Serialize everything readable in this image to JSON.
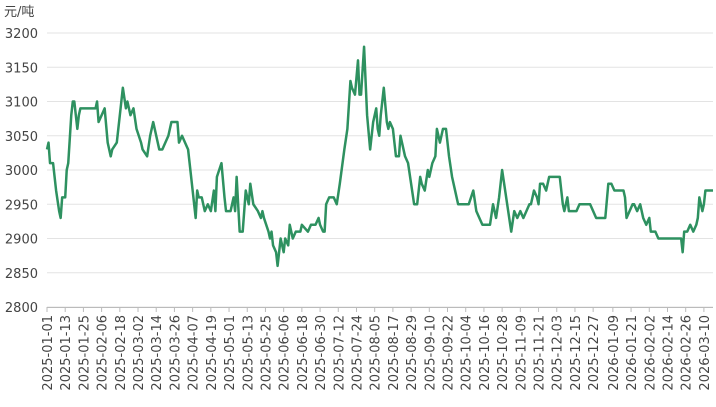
{
  "chart_data": {
    "type": "line",
    "y_label": "元/吨",
    "x": [
      "2025-01-01",
      "2025-01-02",
      "2025-01-03",
      "2025-01-05",
      "2025-01-07",
      "2025-01-09",
      "2025-01-10",
      "2025-01-11",
      "2025-01-13",
      "2025-01-14",
      "2025-01-15",
      "2025-01-17",
      "2025-01-18",
      "2025-01-19",
      "2025-01-20",
      "2025-01-21",
      "2025-01-22",
      "2025-01-23",
      "2025-02-02",
      "2025-02-03",
      "2025-02-04",
      "2025-02-06",
      "2025-02-08",
      "2025-02-10",
      "2025-02-12",
      "2025-02-13",
      "2025-02-16",
      "2025-02-18",
      "2025-02-20",
      "2025-02-22",
      "2025-02-23",
      "2025-02-25",
      "2025-02-27",
      "2025-03-01",
      "2025-03-04",
      "2025-03-05",
      "2025-03-08",
      "2025-03-10",
      "2025-03-12",
      "2025-03-14",
      "2025-03-16",
      "2025-03-18",
      "2025-03-20",
      "2025-03-22",
      "2025-03-24",
      "2025-03-28",
      "2025-03-29",
      "2025-03-31",
      "2025-04-02",
      "2025-04-04",
      "2025-04-05",
      "2025-04-07",
      "2025-04-09",
      "2025-04-10",
      "2025-04-11",
      "2025-04-13",
      "2025-04-15",
      "2025-04-17",
      "2025-04-19",
      "2025-04-21",
      "2025-04-22",
      "2025-04-23",
      "2025-04-26",
      "2025-04-28",
      "2025-04-29",
      "2025-05-02",
      "2025-05-04",
      "2025-05-05",
      "2025-05-06",
      "2025-05-08",
      "2025-05-10",
      "2025-05-12",
      "2025-05-14",
      "2025-05-15",
      "2025-05-17",
      "2025-05-20",
      "2025-05-22",
      "2025-05-23",
      "2025-05-24",
      "2025-05-27",
      "2025-05-28",
      "2025-05-29",
      "2025-05-30",
      "2025-06-01",
      "2025-06-02",
      "2025-06-04",
      "2025-06-06",
      "2025-06-07",
      "2025-06-09",
      "2025-06-10",
      "2025-06-12",
      "2025-06-14",
      "2025-06-17",
      "2025-06-18",
      "2025-06-22",
      "2025-06-24",
      "2025-06-27",
      "2025-06-29",
      "2025-06-30",
      "2025-07-02",
      "2025-07-03",
      "2025-07-04",
      "2025-07-06",
      "2025-07-09",
      "2025-07-11",
      "2025-07-13",
      "2025-07-16",
      "2025-07-18",
      "2025-07-20",
      "2025-07-21",
      "2025-07-23",
      "2025-07-25",
      "2025-07-26",
      "2025-07-27",
      "2025-07-29",
      "2025-07-31",
      "2025-08-02",
      "2025-08-04",
      "2025-08-06",
      "2025-08-07",
      "2025-08-08",
      "2025-08-09",
      "2025-08-11",
      "2025-08-13",
      "2025-08-14",
      "2025-08-15",
      "2025-08-17",
      "2025-08-19",
      "2025-08-21",
      "2025-08-22",
      "2025-08-23",
      "2025-08-25",
      "2025-08-27",
      "2025-08-29",
      "2025-08-31",
      "2025-09-02",
      "2025-09-04",
      "2025-09-05",
      "2025-09-07",
      "2025-09-09",
      "2025-09-10",
      "2025-09-12",
      "2025-09-14",
      "2025-09-15",
      "2025-09-17",
      "2025-09-19",
      "2025-09-21",
      "2025-09-23",
      "2025-09-25",
      "2025-09-27",
      "2025-09-29",
      "2025-10-01",
      "2025-10-06",
      "2025-10-09",
      "2025-10-11",
      "2025-10-13",
      "2025-10-15",
      "2025-10-20",
      "2025-10-22",
      "2025-10-24",
      "2025-10-26",
      "2025-10-28",
      "2025-10-30",
      "2025-11-01",
      "2025-11-03",
      "2025-11-05",
      "2025-11-07",
      "2025-11-09",
      "2025-11-11",
      "2025-11-13",
      "2025-11-15",
      "2025-11-16",
      "2025-11-18",
      "2025-11-20",
      "2025-11-21",
      "2025-11-22",
      "2025-11-24",
      "2025-11-26",
      "2025-11-28",
      "2025-12-05",
      "2025-12-07",
      "2025-12-08",
      "2025-12-10",
      "2025-12-11",
      "2025-12-16",
      "2025-12-18",
      "2025-12-25",
      "2025-12-27",
      "2025-12-29",
      "2026-01-04",
      "2026-01-06",
      "2026-01-08",
      "2026-01-10",
      "2026-01-16",
      "2026-01-17",
      "2026-01-18",
      "2026-01-20",
      "2026-01-22",
      "2026-01-23",
      "2026-01-25",
      "2026-01-27",
      "2026-01-29",
      "2026-01-31",
      "2026-02-02",
      "2026-02-03",
      "2026-02-06",
      "2026-02-08",
      "2026-02-23",
      "2026-02-24",
      "2026-02-25",
      "2026-02-27",
      "2026-03-01",
      "2026-03-03",
      "2026-03-05",
      "2026-03-06",
      "2026-03-07",
      "2026-03-09",
      "2026-03-10",
      "2026-03-11",
      "2026-03-16"
    ],
    "series": [
      {
        "color": "#2e9160",
        "values": [
          3030,
          3040,
          3010,
          3010,
          2970,
          2940,
          2930,
          2960,
          2960,
          3000,
          3010,
          3080,
          3100,
          3100,
          3080,
          3060,
          3080,
          3090,
          3090,
          3100,
          3070,
          3080,
          3090,
          3040,
          3020,
          3030,
          3040,
          3080,
          3120,
          3090,
          3100,
          3080,
          3090,
          3060,
          3040,
          3030,
          3020,
          3050,
          3070,
          3050,
          3030,
          3030,
          3040,
          3050,
          3070,
          3070,
          3040,
          3050,
          3040,
          3030,
          3010,
          2970,
          2930,
          2970,
          2960,
          2960,
          2940,
          2950,
          2940,
          2970,
          2940,
          2990,
          3010,
          2960,
          2940,
          2940,
          2960,
          2940,
          2990,
          2910,
          2910,
          2970,
          2950,
          2980,
          2950,
          2940,
          2930,
          2940,
          2930,
          2910,
          2900,
          2910,
          2890,
          2880,
          2860,
          2900,
          2880,
          2900,
          2890,
          2920,
          2900,
          2910,
          2910,
          2920,
          2910,
          2920,
          2920,
          2930,
          2920,
          2910,
          2910,
          2950,
          2960,
          2960,
          2950,
          2980,
          3030,
          3060,
          3130,
          3120,
          3110,
          3160,
          3110,
          3110,
          3180,
          3080,
          3030,
          3070,
          3090,
          3060,
          3050,
          3080,
          3120,
          3070,
          3060,
          3070,
          3060,
          3020,
          3020,
          3050,
          3040,
          3020,
          3010,
          2980,
          2950,
          2950,
          2990,
          2980,
          2970,
          3000,
          2990,
          3010,
          3020,
          3060,
          3040,
          3060,
          3060,
          3020,
          2990,
          2970,
          2950,
          2950,
          2950,
          2970,
          2940,
          2930,
          2920,
          2920,
          2950,
          2930,
          2960,
          3000,
          2970,
          2940,
          2910,
          2940,
          2930,
          2940,
          2930,
          2940,
          2950,
          2950,
          2970,
          2960,
          2950,
          2980,
          2980,
          2970,
          2990,
          2990,
          2950,
          2940,
          2960,
          2940,
          2940,
          2950,
          2950,
          2940,
          2930,
          2930,
          2980,
          2980,
          2970,
          2970,
          2960,
          2930,
          2940,
          2950,
          2950,
          2940,
          2950,
          2930,
          2920,
          2930,
          2910,
          2910,
          2900,
          2900,
          2880,
          2910,
          2910,
          2920,
          2910,
          2920,
          2930,
          2960,
          2940,
          2950,
          2970,
          2970
        ]
      }
    ],
    "xlim": [
      "2025-01-01",
      "2026-03-16"
    ],
    "xticks": [
      "2025-01-01",
      "2025-01-13",
      "2025-01-25",
      "2025-02-06",
      "2025-02-18",
      "2025-03-02",
      "2025-03-14",
      "2025-03-26",
      "2025-04-07",
      "2025-04-19",
      "2025-05-01",
      "2025-05-13",
      "2025-05-25",
      "2025-06-06",
      "2025-06-18",
      "2025-06-30",
      "2025-07-12",
      "2025-07-24",
      "2025-08-05",
      "2025-08-17",
      "2025-08-29",
      "2025-09-10",
      "2025-09-22",
      "2025-10-04",
      "2025-10-16",
      "2025-10-28",
      "2025-11-09",
      "2025-11-21",
      "2025-12-03",
      "2025-12-15",
      "2025-12-27",
      "2026-01-09",
      "2026-01-21",
      "2026-02-02",
      "2026-02-14",
      "2026-02-26",
      "2026-03-10"
    ],
    "ylim": [
      2800,
      3200
    ],
    "yticks": [
      2800,
      2850,
      2900,
      2950,
      3000,
      3050,
      3100,
      3150,
      3200
    ],
    "grid": true
  }
}
